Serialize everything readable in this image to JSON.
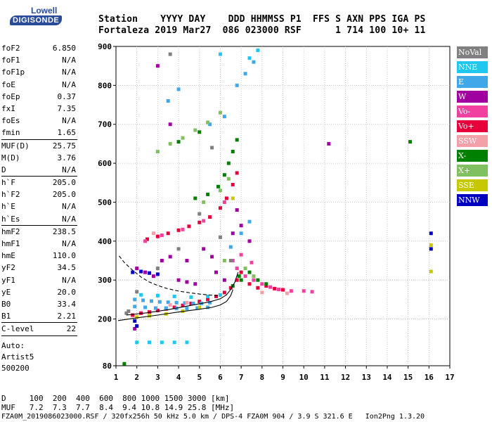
{
  "logo": {
    "line1": "Lowell",
    "line2": "DIGISONDE"
  },
  "header": {
    "line1": "Station    YYYY DAY    DDD HHMMSS P1  FFS S AXN PPS IGA PS",
    "line2": "Fortaleza 2019 Mar27  086 023000 RSF      1 714 100 10+ 11"
  },
  "params": [
    {
      "label": "foF2",
      "value": "6.850"
    },
    {
      "label": "foF1",
      "value": "N/A"
    },
    {
      "label": "foF1p",
      "value": "N/A"
    },
    {
      "label": "foE",
      "value": "N/A"
    },
    {
      "label": "foEp",
      "value": "0.37"
    },
    {
      "label": "fxI",
      "value": "7.35"
    },
    {
      "label": "foEs",
      "value": "N/A"
    },
    {
      "label": "fmin",
      "value": "1.65"
    },
    {
      "sep": true
    },
    {
      "label": "MUF(D)",
      "value": "25.75"
    },
    {
      "label": "M(D)",
      "value": "3.76"
    },
    {
      "label": "D",
      "value": "N/A"
    },
    {
      "sep": true
    },
    {
      "label": "h`F",
      "value": "205.0"
    },
    {
      "label": "h`F2",
      "value": "205.0"
    },
    {
      "label": "h`E",
      "value": "N/A"
    },
    {
      "label": "h`Es",
      "value": "N/A"
    },
    {
      "sep": true
    },
    {
      "label": "hmF2",
      "value": "238.5"
    },
    {
      "label": "hmF1",
      "value": "N/A"
    },
    {
      "label": "hmE",
      "value": "110.0"
    },
    {
      "label": "yF2",
      "value": "34.5"
    },
    {
      "label": "yF1",
      "value": "N/A"
    },
    {
      "label": "yE",
      "value": "20.0"
    },
    {
      "label": "B0",
      "value": "33.4"
    },
    {
      "label": "B1",
      "value": "2.21"
    },
    {
      "sep": true
    },
    {
      "label": "C-level",
      "value": "22"
    },
    {
      "sep": true
    }
  ],
  "auto": {
    "line1": "Auto:",
    "line2": "Artist5",
    "line3": "500200"
  },
  "legend": [
    {
      "label": "NoVal",
      "color": "#808080"
    },
    {
      "label": "NNE",
      "color": "#20c8f0"
    },
    {
      "label": "E",
      "color": "#40a8e8"
    },
    {
      "label": "W",
      "color": "#a000a0"
    },
    {
      "label": "Vo-",
      "color": "#f040a0"
    },
    {
      "label": "Vo+",
      "color": "#e8003c"
    },
    {
      "label": "SSW",
      "color": "#f4a0a8"
    },
    {
      "label": "X-",
      "color": "#008000"
    },
    {
      "label": "X+",
      "color": "#80c060"
    },
    {
      "label": "SSE",
      "color": "#c8c800"
    },
    {
      "label": "NNW",
      "color": "#0000c0"
    }
  ],
  "footer": {
    "line1": "D     100  200  400  600  800 1000 1500 3000 [km]",
    "line2": "MUF   7.2  7.3  7.7  8.4  9.4 10.8 14.9 25.8 [MHz]",
    "line3": "FZA0M_2019086023000.RSF / 320fx256h 50 kHz 5.0 km / DPS-4 FZA0M 904 / 3.9 S 321.6 E   Ion2Png 1.3.20"
  },
  "chart_data": {
    "type": "scatter",
    "xlim": [
      1,
      17
    ],
    "ylim": [
      80,
      900
    ],
    "x_ticks": [
      1,
      2,
      3,
      4,
      5,
      6,
      7,
      8,
      9,
      10,
      11,
      12,
      13,
      14,
      15,
      16,
      17
    ],
    "y_ticks": [
      80,
      200,
      300,
      400,
      500,
      600,
      700,
      800,
      900
    ],
    "grid": true,
    "series": [
      {
        "name": "Vo+",
        "color": "#e8003c",
        "points": [
          [
            1.8,
            210
          ],
          [
            2.2,
            215
          ],
          [
            2.6,
            218
          ],
          [
            3.0,
            222
          ],
          [
            3.4,
            226
          ],
          [
            3.8,
            230
          ],
          [
            4.2,
            235
          ],
          [
            4.6,
            240
          ],
          [
            5.0,
            245
          ],
          [
            5.4,
            250
          ],
          [
            5.8,
            258
          ],
          [
            6.2,
            268
          ],
          [
            6.5,
            280
          ],
          [
            6.8,
            300
          ],
          [
            7.0,
            320
          ],
          [
            7.4,
            290
          ],
          [
            7.8,
            280
          ],
          [
            8.2,
            285
          ],
          [
            8.6,
            278
          ],
          [
            9.0,
            275
          ],
          [
            2.5,
            405
          ],
          [
            3.0,
            412
          ],
          [
            3.5,
            420
          ],
          [
            4.0,
            428
          ],
          [
            4.5,
            438
          ],
          [
            5.0,
            448
          ],
          [
            5.5,
            462
          ],
          [
            6.0,
            485
          ],
          [
            6.3,
            510
          ],
          [
            6.6,
            545
          ],
          [
            6.8,
            575
          ]
        ]
      },
      {
        "name": "Vo-",
        "color": "#f040a0",
        "points": [
          [
            2.4,
            400
          ],
          [
            3.2,
            415
          ],
          [
            4.2,
            430
          ],
          [
            5.2,
            452
          ],
          [
            6.2,
            500
          ],
          [
            6.6,
            350
          ],
          [
            6.8,
            330
          ],
          [
            7.2,
            310
          ],
          [
            7.6,
            300
          ],
          [
            8.0,
            290
          ],
          [
            8.4,
            282
          ],
          [
            8.8,
            276
          ],
          [
            9.4,
            272
          ],
          [
            10.0,
            272
          ],
          [
            10.4,
            270
          ],
          [
            7.0,
            365
          ],
          [
            7.5,
            345
          ]
        ]
      },
      {
        "name": "E",
        "color": "#40a8e8",
        "points": [
          [
            1.9,
            250
          ],
          [
            2.3,
            248
          ],
          [
            2.7,
            246
          ],
          [
            3.1,
            244
          ],
          [
            3.5,
            243
          ],
          [
            3.9,
            242
          ],
          [
            4.3,
            241
          ],
          [
            4.7,
            240
          ],
          [
            5.1,
            240
          ],
          [
            5.5,
            242
          ],
          [
            1.9,
            232
          ],
          [
            2.4,
            230
          ],
          [
            2.9,
            228
          ],
          [
            3.4,
            228
          ],
          [
            3.9,
            227
          ],
          [
            4.4,
            227
          ],
          [
            4.9,
            228
          ],
          [
            5.4,
            230
          ],
          [
            6.5,
            385
          ],
          [
            7.0,
            420
          ],
          [
            7.4,
            450
          ],
          [
            7.6,
            860
          ],
          [
            7.2,
            830
          ],
          [
            6.8,
            800
          ],
          [
            4.0,
            790
          ],
          [
            3.5,
            760
          ],
          [
            5.5,
            700
          ],
          [
            6.2,
            720
          ]
        ]
      },
      {
        "name": "NNE",
        "color": "#20c8f0",
        "points": [
          [
            2.2,
            262
          ],
          [
            3.0,
            260
          ],
          [
            3.8,
            258
          ],
          [
            4.6,
            256
          ],
          [
            5.4,
            258
          ],
          [
            6.0,
            262
          ],
          [
            2.0,
            140
          ],
          [
            2.6,
            140
          ],
          [
            3.2,
            140
          ],
          [
            3.8,
            140
          ],
          [
            4.4,
            140
          ],
          [
            7.8,
            890
          ],
          [
            7.4,
            870
          ],
          [
            6.0,
            880
          ]
        ]
      },
      {
        "name": "W",
        "color": "#a000a0",
        "points": [
          [
            2.0,
            330
          ],
          [
            2.4,
            320
          ],
          [
            2.8,
            310
          ],
          [
            3.2,
            350
          ],
          [
            3.6,
            360
          ],
          [
            4.0,
            300
          ],
          [
            4.4,
            295
          ],
          [
            4.8,
            290
          ],
          [
            5.2,
            380
          ],
          [
            5.6,
            360
          ],
          [
            6.2,
            300
          ],
          [
            6.6,
            420
          ],
          [
            6.8,
            480
          ],
          [
            7.0,
            440
          ],
          [
            3.0,
            850
          ],
          [
            3.6,
            700
          ],
          [
            4.4,
            350
          ],
          [
            5.8,
            320
          ],
          [
            7.4,
            400
          ],
          [
            11.2,
            650
          ],
          [
            1.9,
            175
          ]
        ]
      },
      {
        "name": "X-",
        "color": "#008000",
        "points": [
          [
            4.8,
            510
          ],
          [
            5.4,
            520
          ],
          [
            5.9,
            540
          ],
          [
            6.2,
            570
          ],
          [
            6.4,
            600
          ],
          [
            6.6,
            630
          ],
          [
            6.8,
            660
          ],
          [
            7.0,
            300
          ],
          [
            7.4,
            320
          ],
          [
            7.8,
            300
          ],
          [
            8.2,
            290
          ],
          [
            6.6,
            285
          ],
          [
            6.9,
            310
          ],
          [
            15.1,
            655
          ],
          [
            4.0,
            655
          ],
          [
            5.0,
            680
          ],
          [
            1.4,
            85
          ]
        ]
      },
      {
        "name": "X+",
        "color": "#80c060",
        "points": [
          [
            3.0,
            630
          ],
          [
            3.6,
            650
          ],
          [
            4.2,
            665
          ],
          [
            4.8,
            685
          ],
          [
            5.4,
            705
          ],
          [
            6.0,
            730
          ],
          [
            5.2,
            500
          ],
          [
            6.0,
            530
          ],
          [
            6.4,
            560
          ],
          [
            7.2,
            330
          ],
          [
            7.6,
            310
          ],
          [
            6.2,
            350
          ]
        ]
      },
      {
        "name": "SSE",
        "color": "#c8c800",
        "points": [
          [
            2.0,
            205
          ],
          [
            2.6,
            208
          ],
          [
            3.4,
            213
          ],
          [
            4.2,
            220
          ],
          [
            5.0,
            230
          ],
          [
            16.1,
            390
          ],
          [
            16.1,
            322
          ],
          [
            6.6,
            510
          ]
        ]
      },
      {
        "name": "NNW",
        "color": "#0000c0",
        "points": [
          [
            1.8,
            320
          ],
          [
            2.2,
            322
          ],
          [
            2.6,
            318
          ],
          [
            3.0,
            315
          ],
          [
            1.9,
            195
          ],
          [
            2.0,
            182
          ],
          [
            16.1,
            420
          ],
          [
            16.1,
            380
          ]
        ]
      },
      {
        "name": "SSW",
        "color": "#f4a0a8",
        "points": [
          [
            3.6,
            236
          ],
          [
            4.4,
            242
          ],
          [
            8.0,
            268
          ],
          [
            9.2,
            266
          ],
          [
            2.8,
            420
          ]
        ]
      },
      {
        "name": "NoVal",
        "color": "#808080",
        "points": [
          [
            1.5,
            215
          ],
          [
            1.6,
            220
          ],
          [
            2.0,
            270
          ],
          [
            3.0,
            330
          ],
          [
            4.0,
            380
          ],
          [
            5.0,
            470
          ],
          [
            6.0,
            410
          ],
          [
            6.5,
            350
          ],
          [
            3.6,
            880
          ],
          [
            5.6,
            640
          ]
        ]
      }
    ],
    "curves": [
      {
        "name": "profile-solid",
        "style": "solid",
        "points": [
          [
            1.1,
            196
          ],
          [
            2.0,
            203
          ],
          [
            3.0,
            210
          ],
          [
            4.0,
            218
          ],
          [
            5.0,
            225
          ],
          [
            5.6,
            230
          ],
          [
            6.0,
            236
          ],
          [
            6.3,
            245
          ],
          [
            6.5,
            260
          ],
          [
            6.6,
            275
          ]
        ]
      },
      {
        "name": "profile-dashed",
        "style": "dashed",
        "points": [
          [
            1.15,
            362
          ],
          [
            1.4,
            345
          ],
          [
            1.8,
            325
          ],
          [
            2.2,
            308
          ],
          [
            2.6,
            295
          ],
          [
            3.0,
            286
          ],
          [
            3.4,
            279
          ],
          [
            3.8,
            274
          ],
          [
            4.2,
            270
          ],
          [
            4.6,
            267
          ],
          [
            5.0,
            264
          ],
          [
            5.4,
            262
          ],
          [
            5.8,
            260
          ],
          [
            6.0,
            258
          ]
        ]
      },
      {
        "name": "trace-fit",
        "style": "solid",
        "points": [
          [
            1.5,
            210
          ],
          [
            2.5,
            216
          ],
          [
            3.5,
            224
          ],
          [
            4.5,
            234
          ],
          [
            5.5,
            244
          ],
          [
            6.0,
            252
          ],
          [
            6.3,
            262
          ],
          [
            6.5,
            276
          ],
          [
            6.7,
            295
          ],
          [
            6.85,
            320
          ]
        ]
      }
    ]
  }
}
